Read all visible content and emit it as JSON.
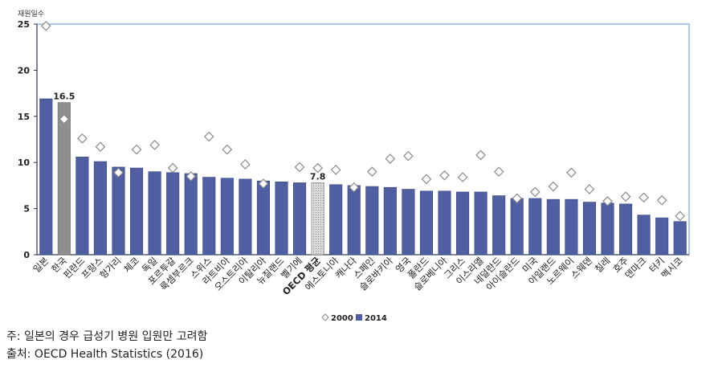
{
  "chart_data": {
    "type": "bar",
    "ylabel": "재원일수",
    "ylim": [
      0,
      25
    ],
    "yticks": [
      0,
      5,
      10,
      15,
      20,
      25
    ],
    "grid": false,
    "legend_position": "bottom",
    "categories": [
      "일본",
      "한국",
      "핀란드",
      "프랑스",
      "헝가리",
      "체코",
      "독일",
      "포르투갈",
      "룩셈부르크",
      "스위스",
      "라트비아",
      "오스트리아",
      "이탈리아",
      "뉴질랜드",
      "벨기에",
      "OECD 평균",
      "에스토니아",
      "캐나다",
      "스페인",
      "슬로바키아",
      "영국",
      "폴란드",
      "슬로베니아",
      "그리스",
      "이스라엘",
      "네덜란드",
      "아이슬란드",
      "미국",
      "아일랜드",
      "노르웨이",
      "스웨덴",
      "칠레",
      "호주",
      "덴마크",
      "터키",
      "멕시코"
    ],
    "series": [
      {
        "name": "2000",
        "marker": "diamond",
        "values": [
          24.8,
          14.7,
          12.6,
          11.7,
          8.9,
          11.4,
          11.9,
          9.4,
          8.5,
          12.8,
          11.4,
          9.8,
          7.7,
          null,
          9.5,
          9.4,
          9.2,
          7.3,
          9.0,
          10.4,
          10.7,
          8.2,
          8.6,
          8.4,
          10.8,
          9.0,
          6.1,
          6.8,
          7.4,
          8.9,
          7.1,
          5.8,
          6.3,
          6.2,
          5.9,
          4.2
        ]
      },
      {
        "name": "2014",
        "marker": "bar",
        "values": [
          16.9,
          16.5,
          10.6,
          10.1,
          9.5,
          9.4,
          9.0,
          8.9,
          8.8,
          8.4,
          8.3,
          8.2,
          8.0,
          7.9,
          7.8,
          7.8,
          7.6,
          7.5,
          7.4,
          7.3,
          7.1,
          6.9,
          6.9,
          6.8,
          6.8,
          6.4,
          6.1,
          6.1,
          6.0,
          6.0,
          5.7,
          5.6,
          5.5,
          4.3,
          4.0,
          3.6
        ]
      }
    ],
    "highlights": {
      "한국": "gray",
      "OECD 평균": "dotted"
    },
    "data_labels": [
      {
        "category": "한국",
        "text": "16.5"
      },
      {
        "category": "OECD 평균",
        "text": "7.8"
      }
    ],
    "colors": {
      "bar_2014": "#4f5fa1",
      "korea_bar": "#8f8f8f",
      "oecd_bar": "#d9d9d9",
      "diamond": "#ffffff",
      "diamond_edge": "#8a8a8a",
      "plot_border": "#8fb6d9"
    }
  },
  "notes": {
    "note": "주: 일본의 경우 급성기 병원 입원만 고려함",
    "source": "출처: OECD Health Statistics (2016)"
  }
}
